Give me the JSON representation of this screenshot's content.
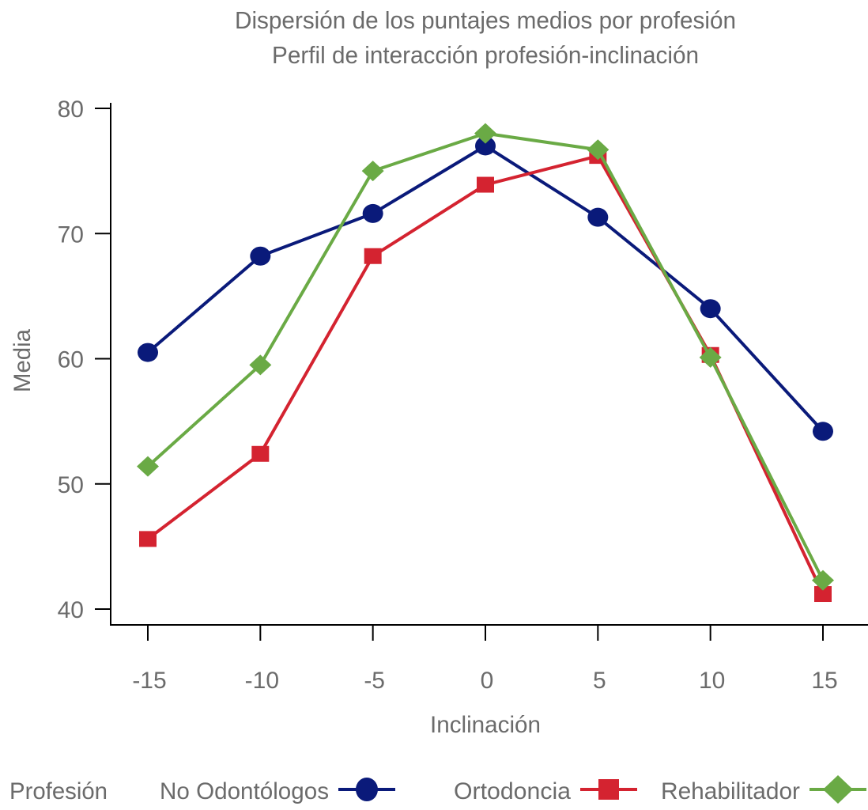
{
  "chart_data": {
    "type": "line",
    "title": "Dispersión de los puntajes medios por profesión",
    "subtitle": "Perfil de interacción profesión-inclinación",
    "xlabel": "Inclinación",
    "ylabel": "Media",
    "x": [
      -15,
      -10,
      -5,
      0,
      5,
      10,
      15
    ],
    "x_tick_labels": [
      "-15",
      "-10",
      "-5",
      "0",
      "5",
      "10",
      "15"
    ],
    "y_ticks": [
      40,
      50,
      60,
      70,
      80
    ],
    "y_tick_labels": [
      "40",
      "50",
      "60",
      "70",
      "80"
    ],
    "xlim": [
      -16.6,
      16.6
    ],
    "ylim": [
      40,
      80
    ],
    "grid": false,
    "legend": {
      "title": "Profesión",
      "placement": "bottom"
    },
    "series": [
      {
        "name": "No Odontólogos",
        "color": "#0a1a7a",
        "marker": "circle",
        "values": [
          60.5,
          68.2,
          71.6,
          77.0,
          71.3,
          64.0,
          54.2
        ]
      },
      {
        "name": "Ortodoncia",
        "color": "#d42330",
        "marker": "square",
        "values": [
          45.6,
          52.4,
          68.2,
          73.9,
          76.2,
          60.3,
          41.2
        ]
      },
      {
        "name": "Rehabilitador",
        "color": "#6aaa45",
        "marker": "diamond",
        "values": [
          51.4,
          59.5,
          75.0,
          78.0,
          76.7,
          60.1,
          42.3
        ]
      }
    ]
  }
}
